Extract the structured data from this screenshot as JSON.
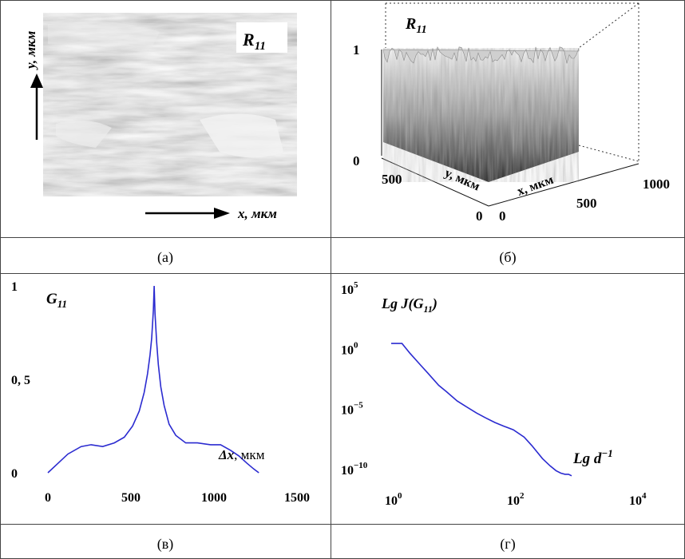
{
  "captions": {
    "a": "(а)",
    "b": "(б)",
    "c": "(в)",
    "d": "(г)"
  },
  "panel_a": {
    "label_main": "R",
    "label_sub": "11",
    "y_axis": "y, мкм",
    "x_axis": "x, мкм"
  },
  "panel_b": {
    "label_main": "R",
    "label_sub": "11",
    "z_ticks": [
      "1",
      "0"
    ],
    "y_ticks": [
      "500",
      "0"
    ],
    "x_ticks": [
      "0",
      "500",
      "1000"
    ],
    "y_axis": "y, мкм",
    "x_axis": "x, мкм"
  },
  "chart_data": [
    {
      "type": "line",
      "title": "G11",
      "title_main": "G",
      "title_sub": "11",
      "xlabel": "Δx, мкм",
      "xlabel_main": "Δx",
      "xlabel_unit": ", мкм",
      "xlim": [
        0,
        1500
      ],
      "ylim": [
        0,
        1
      ],
      "x_ticks": [
        "0",
        "500",
        "1000",
        "1500"
      ],
      "y_ticks": [
        "0",
        "0, 5",
        "1"
      ],
      "color": "#2b2bd0",
      "series": [
        {
          "x": [
            0,
            60,
            120,
            200,
            260,
            330,
            400,
            460,
            510,
            550,
            580,
            600,
            615,
            625,
            635,
            640,
            645,
            655,
            665,
            680,
            700,
            730,
            770,
            830,
            900,
            980,
            1040,
            1100,
            1150,
            1200,
            1240,
            1270
          ],
          "y": [
            0,
            0.05,
            0.1,
            0.14,
            0.15,
            0.14,
            0.16,
            0.19,
            0.25,
            0.33,
            0.43,
            0.53,
            0.63,
            0.72,
            0.87,
            1.0,
            0.85,
            0.7,
            0.58,
            0.46,
            0.36,
            0.26,
            0.2,
            0.16,
            0.16,
            0.15,
            0.15,
            0.12,
            0.09,
            0.05,
            0.02,
            0
          ]
        }
      ]
    },
    {
      "type": "line",
      "title": "Lg J(G11)",
      "title_main": "Lg J(G",
      "title_sub": "11",
      "title_end": ")",
      "xlabel": "Lg d^-1",
      "xlabel_main": "Lg d",
      "xlabel_sup": "−1",
      "x_scale": "log",
      "y_scale": "log",
      "xlim": [
        1,
        10000
      ],
      "ylim": [
        1e-11,
        100000.0
      ],
      "x_ticks": [
        {
          "base": "10",
          "exp": "0"
        },
        {
          "base": "10",
          "exp": "2"
        },
        {
          "base": "10",
          "exp": "4"
        }
      ],
      "y_ticks": [
        {
          "base": "10",
          "exp": "5"
        },
        {
          "base": "10",
          "exp": "0"
        },
        {
          "base": "10",
          "exp": "−5"
        },
        {
          "base": "10",
          "exp": "−10"
        }
      ],
      "color": "#2b2bd0",
      "series": [
        {
          "x": [
            1,
            1.5,
            2,
            3,
            4,
            6,
            8,
            12,
            16,
            25,
            35,
            50,
            70,
            100,
            150,
            200,
            300,
            400,
            500,
            600,
            700,
            800,
            900
          ],
          "y": [
            3,
            3,
            0.5,
            0.05,
            0.01,
            0.001,
            0.0003,
            5e-05,
            2e-05,
            5e-06,
            2e-06,
            8e-07,
            4e-07,
            2e-07,
            5e-08,
            1e-08,
            8e-10,
            2e-10,
            8e-11,
            5e-11,
            4e-11,
            4e-11,
            3e-11
          ]
        }
      ]
    }
  ]
}
